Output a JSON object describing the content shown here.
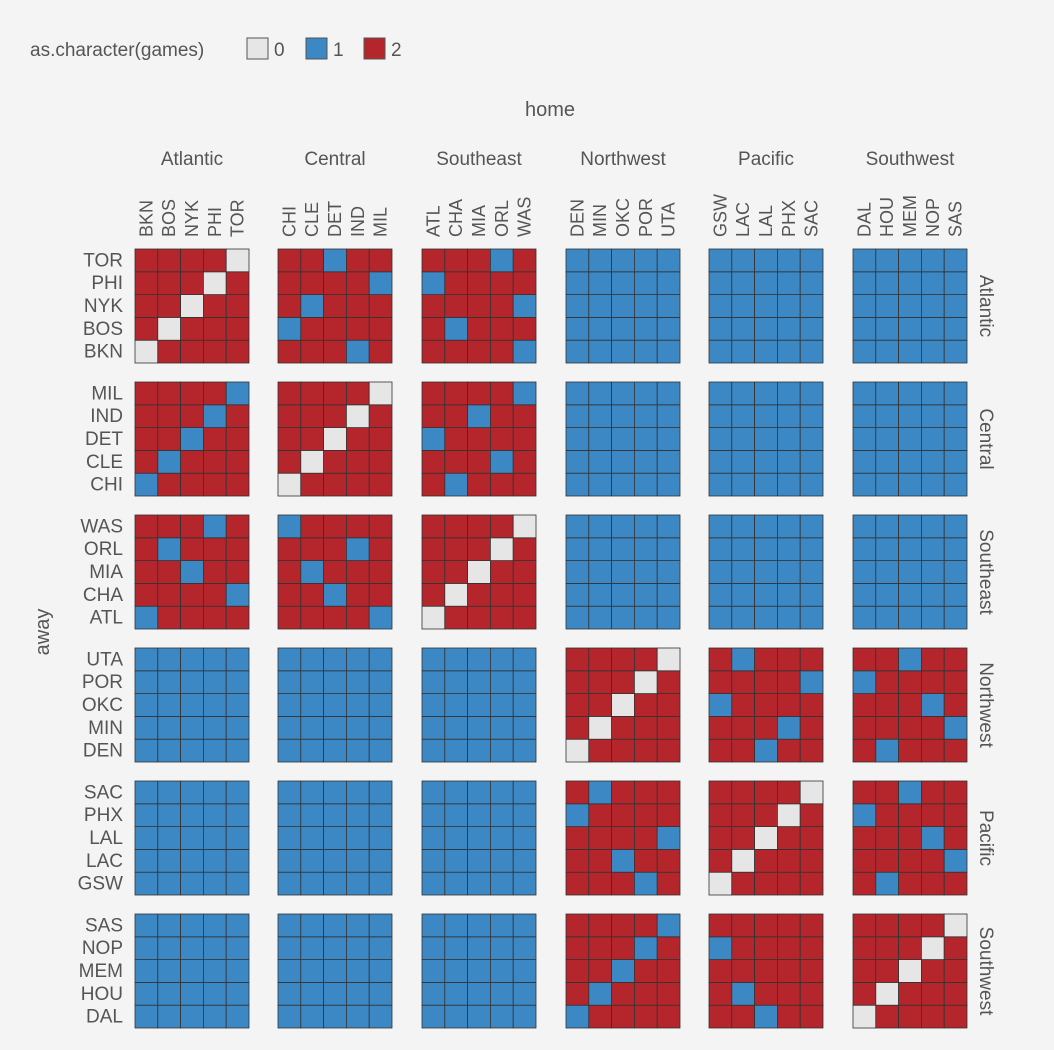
{
  "chart_data": {
    "type": "heatmap",
    "title": "",
    "xlabel": "home",
    "ylabel": "away",
    "legend": {
      "title": "as.character(games)",
      "placement": "top-left",
      "entries": [
        {
          "label": "0",
          "color": "#e6e6e6"
        },
        {
          "label": "1",
          "color": "#3b88c4"
        },
        {
          "label": "2",
          "color": "#b5262c"
        }
      ]
    },
    "divisions": [
      "Atlantic",
      "Central",
      "Southeast",
      "Northwest",
      "Pacific",
      "Southwest"
    ],
    "teams_by_division": {
      "Atlantic": [
        "BKN",
        "BOS",
        "NYK",
        "PHI",
        "TOR"
      ],
      "Central": [
        "CHI",
        "CLE",
        "DET",
        "IND",
        "MIL"
      ],
      "Southeast": [
        "ATL",
        "CHA",
        "MIA",
        "ORL",
        "WAS"
      ],
      "Northwest": [
        "DEN",
        "MIN",
        "OKC",
        "POR",
        "UTA"
      ],
      "Pacific": [
        "GSW",
        "LAC",
        "LAL",
        "PHX",
        "SAC"
      ],
      "Southwest": [
        "DAL",
        "HOU",
        "MEM",
        "NOP",
        "SAS"
      ]
    },
    "games_matrix_note": "rows = away teams in division/team order, columns = home teams in the same order",
    "games": [
      [
        0,
        2,
        2,
        2,
        2,
        2,
        2,
        2,
        1,
        2,
        2,
        2,
        2,
        2,
        1,
        1,
        1,
        1,
        1,
        1,
        1,
        1,
        1,
        1,
        1,
        1,
        1,
        1,
        1,
        1
      ],
      [
        2,
        0,
        2,
        2,
        2,
        1,
        2,
        2,
        2,
        2,
        2,
        1,
        2,
        2,
        2,
        1,
        1,
        1,
        1,
        1,
        1,
        1,
        1,
        1,
        1,
        1,
        1,
        1,
        1,
        1
      ],
      [
        2,
        2,
        0,
        2,
        2,
        2,
        1,
        2,
        2,
        2,
        2,
        2,
        2,
        2,
        1,
        1,
        1,
        1,
        1,
        1,
        1,
        1,
        1,
        1,
        1,
        1,
        1,
        1,
        1,
        1
      ],
      [
        2,
        2,
        2,
        0,
        2,
        2,
        2,
        2,
        2,
        1,
        1,
        2,
        2,
        2,
        2,
        1,
        1,
        1,
        1,
        1,
        1,
        1,
        1,
        1,
        1,
        1,
        1,
        1,
        1,
        1
      ],
      [
        2,
        2,
        2,
        2,
        0,
        2,
        2,
        1,
        2,
        2,
        2,
        2,
        2,
        1,
        2,
        1,
        1,
        1,
        1,
        1,
        1,
        1,
        1,
        1,
        1,
        1,
        1,
        1,
        1,
        1
      ],
      [
        1,
        2,
        2,
        2,
        2,
        0,
        2,
        2,
        2,
        2,
        2,
        1,
        2,
        2,
        2,
        1,
        1,
        1,
        1,
        1,
        1,
        1,
        1,
        1,
        1,
        1,
        1,
        1,
        1,
        1
      ],
      [
        2,
        1,
        2,
        2,
        2,
        2,
        0,
        2,
        2,
        2,
        2,
        2,
        2,
        1,
        2,
        1,
        1,
        1,
        1,
        1,
        1,
        1,
        1,
        1,
        1,
        1,
        1,
        1,
        1,
        1
      ],
      [
        2,
        2,
        1,
        2,
        2,
        2,
        2,
        0,
        2,
        2,
        1,
        2,
        2,
        2,
        2,
        1,
        1,
        1,
        1,
        1,
        1,
        1,
        1,
        1,
        1,
        1,
        1,
        1,
        1,
        1
      ],
      [
        2,
        2,
        2,
        1,
        2,
        2,
        2,
        2,
        0,
        2,
        2,
        2,
        1,
        2,
        2,
        1,
        1,
        1,
        1,
        1,
        1,
        1,
        1,
        1,
        1,
        1,
        1,
        1,
        1,
        1
      ],
      [
        2,
        2,
        2,
        2,
        1,
        2,
        2,
        2,
        2,
        0,
        2,
        2,
        2,
        2,
        1,
        1,
        1,
        1,
        1,
        1,
        1,
        1,
        1,
        1,
        1,
        1,
        1,
        1,
        1,
        1
      ],
      [
        1,
        2,
        2,
        2,
        2,
        2,
        2,
        2,
        2,
        1,
        0,
        2,
        2,
        2,
        2,
        1,
        1,
        1,
        1,
        1,
        1,
        1,
        1,
        1,
        1,
        1,
        1,
        1,
        1,
        1
      ],
      [
        2,
        2,
        2,
        2,
        1,
        2,
        2,
        1,
        2,
        2,
        2,
        0,
        2,
        2,
        2,
        1,
        1,
        1,
        1,
        1,
        1,
        1,
        1,
        1,
        1,
        1,
        1,
        1,
        1,
        1
      ],
      [
        2,
        2,
        1,
        2,
        2,
        2,
        1,
        2,
        2,
        2,
        2,
        2,
        0,
        2,
        2,
        1,
        1,
        1,
        1,
        1,
        1,
        1,
        1,
        1,
        1,
        1,
        1,
        1,
        1,
        1
      ],
      [
        2,
        1,
        2,
        2,
        2,
        2,
        2,
        2,
        1,
        2,
        2,
        2,
        2,
        0,
        2,
        1,
        1,
        1,
        1,
        1,
        1,
        1,
        1,
        1,
        1,
        1,
        1,
        1,
        1,
        1
      ],
      [
        2,
        2,
        2,
        1,
        2,
        1,
        2,
        2,
        2,
        2,
        2,
        2,
        2,
        2,
        0,
        1,
        1,
        1,
        1,
        1,
        1,
        1,
        1,
        1,
        1,
        1,
        1,
        1,
        1,
        1
      ],
      [
        1,
        1,
        1,
        1,
        1,
        1,
        1,
        1,
        1,
        1,
        1,
        1,
        1,
        1,
        1,
        0,
        2,
        2,
        2,
        2,
        2,
        2,
        1,
        2,
        2,
        2,
        1,
        2,
        2,
        2
      ],
      [
        1,
        1,
        1,
        1,
        1,
        1,
        1,
        1,
        1,
        1,
        1,
        1,
        1,
        1,
        1,
        2,
        0,
        2,
        2,
        2,
        2,
        2,
        2,
        1,
        2,
        2,
        2,
        2,
        2,
        1
      ],
      [
        1,
        1,
        1,
        1,
        1,
        1,
        1,
        1,
        1,
        1,
        1,
        1,
        1,
        1,
        1,
        2,
        2,
        0,
        2,
        2,
        1,
        2,
        2,
        2,
        2,
        2,
        2,
        2,
        1,
        2
      ],
      [
        1,
        1,
        1,
        1,
        1,
        1,
        1,
        1,
        1,
        1,
        1,
        1,
        1,
        1,
        1,
        2,
        2,
        2,
        0,
        2,
        2,
        2,
        2,
        2,
        1,
        1,
        2,
        2,
        2,
        2
      ],
      [
        1,
        1,
        1,
        1,
        1,
        1,
        1,
        1,
        1,
        1,
        1,
        1,
        1,
        1,
        1,
        2,
        2,
        2,
        2,
        0,
        2,
        1,
        2,
        2,
        2,
        2,
        2,
        1,
        2,
        2
      ],
      [
        1,
        1,
        1,
        1,
        1,
        1,
        1,
        1,
        1,
        1,
        1,
        1,
        1,
        1,
        1,
        2,
        2,
        2,
        1,
        2,
        0,
        2,
        2,
        2,
        2,
        2,
        1,
        2,
        2,
        2
      ],
      [
        1,
        1,
        1,
        1,
        1,
        1,
        1,
        1,
        1,
        1,
        1,
        1,
        1,
        1,
        1,
        2,
        2,
        1,
        2,
        2,
        2,
        0,
        2,
        2,
        2,
        2,
        2,
        2,
        2,
        1
      ],
      [
        1,
        1,
        1,
        1,
        1,
        1,
        1,
        1,
        1,
        1,
        1,
        1,
        1,
        1,
        1,
        2,
        2,
        2,
        2,
        1,
        2,
        2,
        0,
        2,
        2,
        2,
        2,
        2,
        1,
        2
      ],
      [
        1,
        1,
        1,
        1,
        1,
        1,
        1,
        1,
        1,
        1,
        1,
        1,
        1,
        1,
        1,
        1,
        2,
        2,
        2,
        2,
        2,
        2,
        2,
        0,
        2,
        1,
        2,
        2,
        2,
        2
      ],
      [
        1,
        1,
        1,
        1,
        1,
        1,
        1,
        1,
        1,
        1,
        1,
        1,
        1,
        1,
        1,
        2,
        1,
        2,
        2,
        2,
        2,
        2,
        2,
        2,
        0,
        2,
        2,
        1,
        2,
        2
      ],
      [
        1,
        1,
        1,
        1,
        1,
        1,
        1,
        1,
        1,
        1,
        1,
        1,
        1,
        1,
        1,
        1,
        2,
        2,
        2,
        2,
        2,
        2,
        1,
        2,
        2,
        0,
        2,
        2,
        2,
        2
      ],
      [
        1,
        1,
        1,
        1,
        1,
        1,
        1,
        1,
        1,
        1,
        1,
        1,
        1,
        1,
        1,
        2,
        1,
        2,
        2,
        2,
        2,
        1,
        2,
        2,
        2,
        2,
        0,
        2,
        2,
        2
      ],
      [
        1,
        1,
        1,
        1,
        1,
        1,
        1,
        1,
        1,
        1,
        1,
        1,
        1,
        1,
        1,
        2,
        2,
        1,
        2,
        2,
        2,
        2,
        2,
        2,
        2,
        2,
        2,
        0,
        2,
        2
      ],
      [
        1,
        1,
        1,
        1,
        1,
        1,
        1,
        1,
        1,
        1,
        1,
        1,
        1,
        1,
        1,
        2,
        2,
        2,
        1,
        2,
        1,
        2,
        2,
        2,
        2,
        2,
        2,
        2,
        0,
        2
      ],
      [
        1,
        1,
        1,
        1,
        1,
        1,
        1,
        1,
        1,
        1,
        1,
        1,
        1,
        1,
        1,
        2,
        2,
        2,
        2,
        1,
        2,
        2,
        2,
        2,
        2,
        2,
        2,
        2,
        2,
        0
      ]
    ],
    "grid": false
  }
}
